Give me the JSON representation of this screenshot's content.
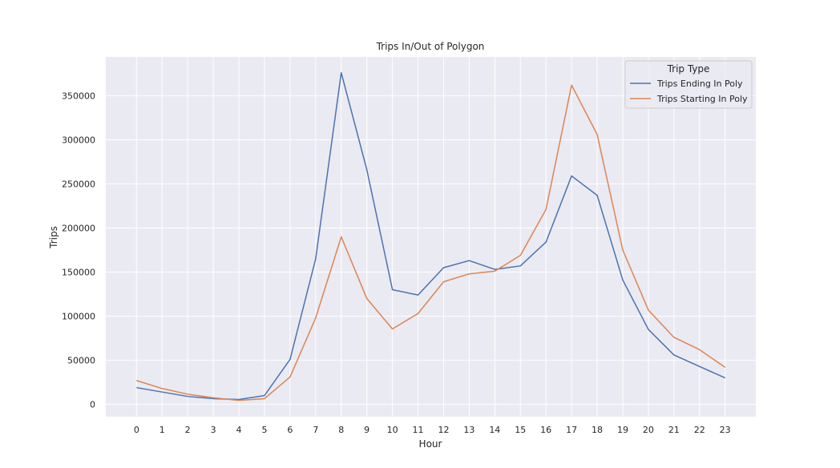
{
  "chart_data": {
    "type": "line",
    "title": "Trips In/Out of Polygon",
    "xlabel": "Hour",
    "ylabel": "Trips",
    "x": [
      0,
      1,
      2,
      3,
      4,
      5,
      6,
      7,
      8,
      9,
      10,
      11,
      12,
      13,
      14,
      15,
      16,
      17,
      18,
      19,
      20,
      21,
      22,
      23
    ],
    "x_tick_labels": [
      "0",
      "1",
      "2",
      "3",
      "4",
      "5",
      "6",
      "7",
      "8",
      "9",
      "10",
      "11",
      "12",
      "13",
      "14",
      "15",
      "16",
      "17",
      "18",
      "19",
      "20",
      "21",
      "22",
      "23"
    ],
    "y_ticks": [
      0,
      50000,
      100000,
      150000,
      200000,
      250000,
      300000,
      350000
    ],
    "y_tick_labels": [
      "0",
      "50000",
      "100000",
      "150000",
      "200000",
      "250000",
      "300000",
      "350000"
    ],
    "xlim": [
      -1.2,
      24.2
    ],
    "ylim": [
      -14000,
      394000
    ],
    "grid": true,
    "legend": {
      "title": "Trip Type",
      "placement": "top-right"
    },
    "series": [
      {
        "name": "Trips Ending In Poly",
        "color": "#4c72b0",
        "values": [
          19000,
          14000,
          9000,
          6500,
          5500,
          10000,
          51000,
          165000,
          376000,
          266000,
          130000,
          124000,
          155000,
          163000,
          153000,
          157000,
          184000,
          259000,
          237000,
          141000,
          85000,
          56000,
          43000,
          30000
        ]
      },
      {
        "name": "Trips Starting In Poly",
        "color": "#dd8452",
        "values": [
          27000,
          18000,
          11500,
          7500,
          4500,
          6500,
          31000,
          98000,
          190000,
          120000,
          85500,
          103000,
          139000,
          148000,
          151000,
          169000,
          221000,
          362000,
          306000,
          175000,
          107000,
          76000,
          62000,
          42000
        ]
      }
    ]
  },
  "colors": {
    "plot_background": "#eaeaf2",
    "grid": "#ffffff",
    "text": "#262626"
  }
}
